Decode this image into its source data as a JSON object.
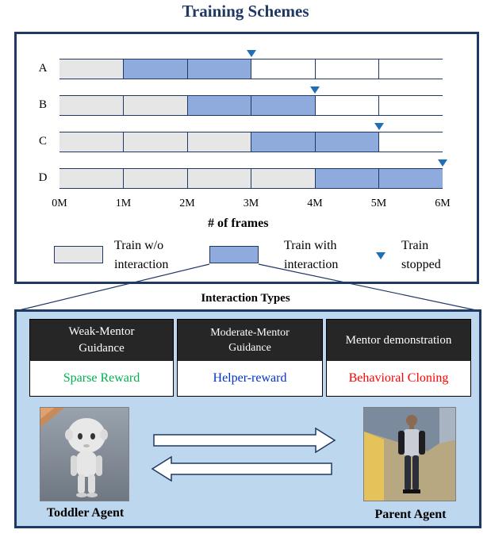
{
  "title": "Training Schemes",
  "rows": [
    {
      "label": "A",
      "stop_frame_m": 3,
      "segments": [
        "no",
        "with",
        "with",
        "empty",
        "empty",
        "empty"
      ]
    },
    {
      "label": "B",
      "stop_frame_m": 4,
      "segments": [
        "no",
        "no",
        "with",
        "with",
        "empty",
        "empty"
      ]
    },
    {
      "label": "C",
      "stop_frame_m": 5,
      "segments": [
        "no",
        "no",
        "no",
        "with",
        "with",
        "empty"
      ]
    },
    {
      "label": "D",
      "stop_frame_m": 6,
      "segments": [
        "no",
        "no",
        "no",
        "no",
        "with",
        "with"
      ]
    }
  ],
  "x_ticks": [
    "0M",
    "1M",
    "2M",
    "3M",
    "4M",
    "5M",
    "6M"
  ],
  "x_label": "# of  frames",
  "legend": {
    "without": [
      "Train w/o",
      "interaction"
    ],
    "with": [
      "Train with",
      "interaction"
    ],
    "stopped": [
      "Train",
      "stopped"
    ]
  },
  "colors": {
    "no_interaction": "#e7e6e6",
    "with_interaction": "#8faadc",
    "empty": "#ffffff",
    "marker": "#1f6fb5",
    "frame": "#1f3864",
    "panel": "#bdd7ee",
    "sparse": "#00b050",
    "helper": "#0033cc",
    "bc": "#ff0000"
  },
  "interaction_title": "Interaction Types",
  "interaction_types": [
    {
      "head": [
        "Weak-Mentor",
        "Guidance"
      ],
      "body": "Sparse Reward"
    },
    {
      "head": [
        "Moderate-Mentor",
        "Guidance"
      ],
      "body": "Helper-reward"
    },
    {
      "head": [
        "Mentor demonstration"
      ],
      "body": "Behavioral Cloning"
    }
  ],
  "agents": {
    "toddler": "Toddler Agent",
    "parent": "Parent Agent"
  }
}
